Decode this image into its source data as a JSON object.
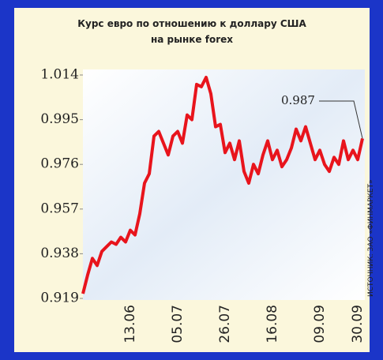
{
  "chart_data": {
    "type": "line",
    "title": [
      "Курс евро по отношению к доллару США",
      "на рынке forex"
    ],
    "source": "ИСТОЧНИК: ЗАО «ФИНМАРКЕТ»",
    "annotation": "0.987",
    "categories": [
      null,
      null,
      null,
      null,
      null,
      null,
      null,
      null,
      null,
      null,
      "13.06",
      null,
      null,
      null,
      null,
      null,
      null,
      null,
      null,
      null,
      "05.07",
      null,
      null,
      null,
      null,
      null,
      null,
      null,
      null,
      null,
      "26.07",
      null,
      null,
      null,
      null,
      null,
      null,
      null,
      null,
      null,
      "16.08",
      null,
      null,
      null,
      null,
      null,
      null,
      null,
      null,
      null,
      "09.09",
      null,
      null,
      null,
      null,
      null,
      null,
      null,
      "30.09",
      null
    ],
    "series": [
      {
        "color": "#e8141c",
        "values": [
          0.921,
          0.929,
          0.936,
          0.933,
          0.939,
          0.941,
          0.943,
          0.942,
          0.945,
          0.943,
          0.948,
          0.946,
          0.955,
          0.968,
          0.972,
          0.988,
          0.99,
          0.985,
          0.98,
          0.988,
          0.99,
          0.985,
          0.997,
          0.995,
          1.01,
          1.009,
          1.013,
          1.006,
          0.992,
          0.993,
          0.981,
          0.985,
          0.978,
          0.986,
          0.973,
          0.968,
          0.976,
          0.972,
          0.98,
          0.986,
          0.978,
          0.982,
          0.975,
          0.978,
          0.983,
          0.991,
          0.986,
          0.992,
          0.985,
          0.978,
          0.982,
          0.976,
          0.973,
          0.979,
          0.976,
          0.986,
          0.978,
          0.982,
          0.978,
          0.987
        ]
      }
    ],
    "ylim": [
      0.919,
      1.014
    ],
    "yticks": [
      0.919,
      0.938,
      0.957,
      0.976,
      0.995,
      1.014
    ]
  }
}
